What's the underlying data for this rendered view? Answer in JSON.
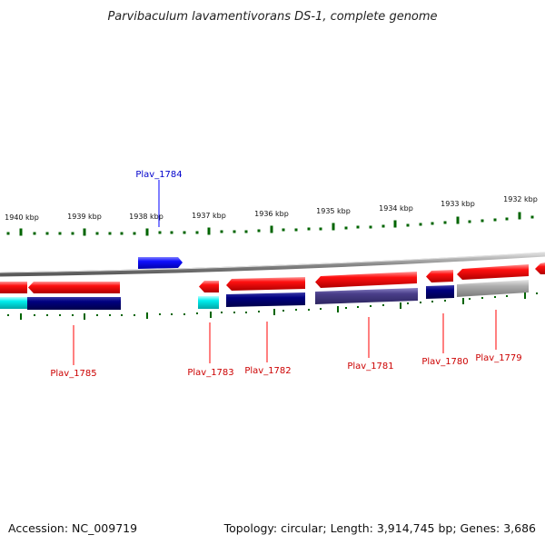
{
  "title": "Parvibaculum lavamentivorans DS-1, complete genome",
  "footer": {
    "accession": "Accession: NC_009719",
    "summary": "Topology: circular; Length: 3,914,745 bp; Genes: 3,686"
  },
  "colors": {
    "forward": "#ff0000",
    "reverse_cog": "#000080",
    "highlight": "#0000ff",
    "cyan": "#00ffff",
    "slate": "#4a3f8a",
    "gray": "#a0a0a0",
    "tick": "#006400",
    "backbone": "#909090"
  },
  "scale": {
    "unit": "kbp",
    "labels": [
      "1940 kbp",
      "1939 kbp",
      "1938 kbp",
      "1937 kbp",
      "1936 kbp",
      "1935 kbp",
      "1934 kbp",
      "1933 kbp",
      "1932 kbp"
    ]
  },
  "genes": [
    {
      "id": "Plav_1785",
      "label": "Plav_1785",
      "strand": "reverse",
      "color": "#ff0000",
      "track2": "#000080"
    },
    {
      "id": "Plav_1784",
      "label": "Plav_1784",
      "strand": "forward",
      "color": "#0000ff",
      "highlighted": true
    },
    {
      "id": "Plav_1783",
      "label": "Plav_1783",
      "strand": "reverse",
      "color": "#ff0000",
      "track2": "#00e5ee"
    },
    {
      "id": "Plav_1782",
      "label": "Plav_1782",
      "strand": "reverse",
      "color": "#ff0000",
      "track2": "#000080"
    },
    {
      "id": "Plav_1781",
      "label": "Plav_1781",
      "strand": "reverse",
      "color": "#ff0000",
      "track2": "#4a3f8a"
    },
    {
      "id": "Plav_1780",
      "label": "Plav_1780",
      "strand": "reverse",
      "color": "#ff0000",
      "track2": "#000080"
    },
    {
      "id": "Plav_1779",
      "label": "Plav_1779",
      "strand": "reverse",
      "color": "#ff0000",
      "track2": "#a0a0a0"
    },
    {
      "id": "partial-right",
      "label": "",
      "strand": "reverse",
      "color": "#ff0000"
    },
    {
      "id": "partial-left-cyan",
      "label": "",
      "strand": "reverse",
      "color": "#00e5ee",
      "track2only": true
    }
  ]
}
